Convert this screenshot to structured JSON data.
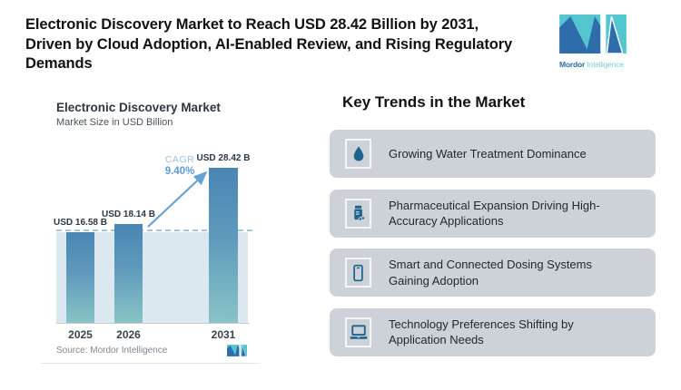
{
  "header": {
    "title_lines": [
      "Electronic Discovery Market to Reach USD 28.42 Billion by 2031,",
      "Driven by Cloud Adoption, AI-Enabled Review, and Rising Regulatory",
      "Demands"
    ],
    "logo": {
      "brand_bold": "Mordor",
      "brand_light": "Intelligence"
    }
  },
  "chart_data": {
    "type": "bar",
    "title": "Electronic Discovery Market",
    "subtitle": "Market Size in USD Billion",
    "unit": "USD Billion",
    "categories": [
      "2025",
      "2026",
      "2031"
    ],
    "values": [
      16.58,
      18.14,
      28.42
    ],
    "value_labels": [
      "USD 16.58 B",
      "USD 18.14 B",
      "USD 28.42 B"
    ],
    "cagr": {
      "label": "CAGR",
      "value": "9.40%"
    },
    "ylim": [
      0,
      30
    ],
    "grid": false,
    "annotations": [
      "dashed horizontal reference line at 2025 value level",
      "diagonal growth arrow from 2026 bar top to 2031 bar top",
      "shaded area fill below reference line across plot width"
    ],
    "source": "Source: Mordor Intelligence"
  },
  "trends": {
    "heading": "Key Trends in the Market",
    "items": [
      {
        "icon": "water-drop-icon",
        "label": "Growing Water Treatment Dominance"
      },
      {
        "icon": "pill-bottle-icon",
        "label": "Pharmaceutical Expansion Driving High-Accuracy Applications"
      },
      {
        "icon": "smartphone-icon",
        "label": "Smart and Connected Dosing Systems Gaining Adoption"
      },
      {
        "icon": "laptop-icon",
        "label": "Technology Preferences Shifting by Application Needs"
      }
    ]
  },
  "colors": {
    "logo_blue": "#2f6cab",
    "logo_teal": "#53c6cf",
    "bar_top": "#4a85b4",
    "bar_bottom": "#89c3c6",
    "plot_area_fill": "#dce8f0",
    "dashed_line": "#a5c4dd",
    "cagr_arrow": "#66a2d8",
    "card_background": "#cdd2d9",
    "trend_icon": "#1d648c"
  }
}
